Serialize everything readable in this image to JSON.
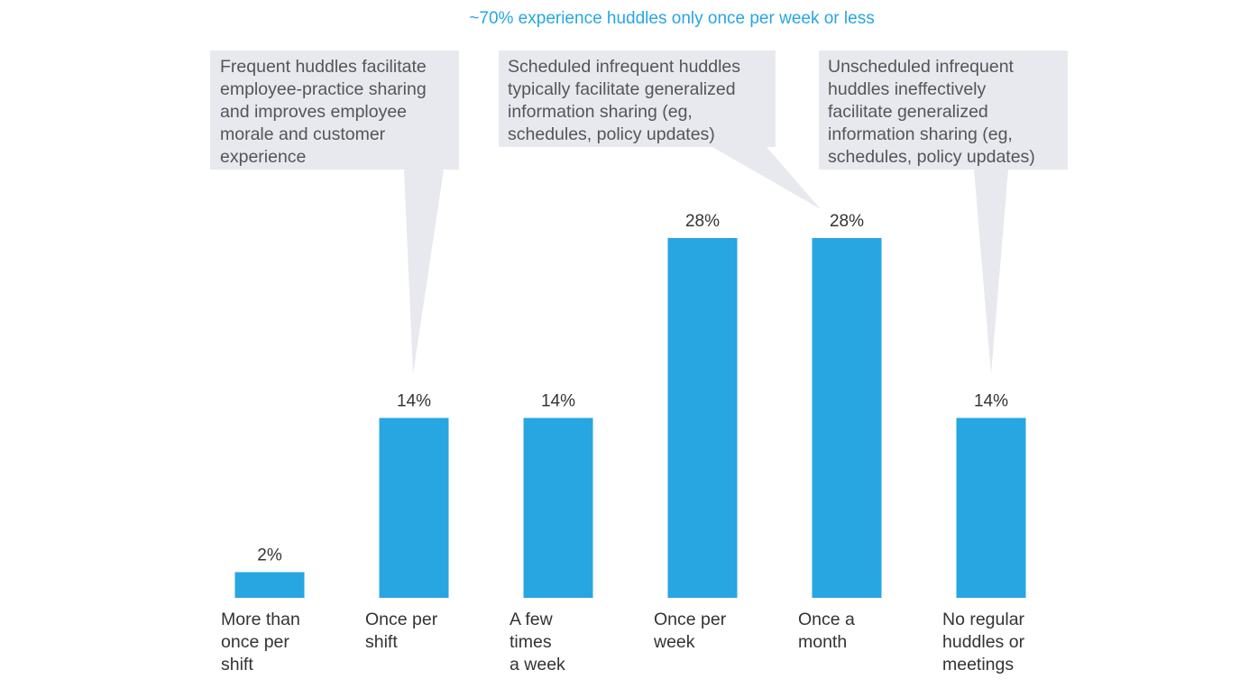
{
  "chart_data": {
    "type": "bar",
    "title": "~70% experience huddles only once per week or less",
    "categories": [
      [
        "More than",
        "once per",
        "shift"
      ],
      [
        "Once per",
        "shift"
      ],
      [
        "A few",
        "times",
        "a week"
      ],
      [
        "Once per",
        "week"
      ],
      [
        "Once a",
        "month"
      ],
      [
        "No regular",
        "huddles or",
        "meetings"
      ]
    ],
    "values": [
      2,
      14,
      14,
      28,
      28,
      14
    ],
    "value_labels": [
      "2%",
      "14%",
      "14%",
      "28%",
      "28%",
      "14%"
    ],
    "ylim": [
      0,
      28
    ],
    "xlabel": "",
    "ylabel": "",
    "grid": false,
    "annotations": [
      {
        "lines": [
          "Frequent huddles facilitate",
          "employee-practice sharing",
          "and improves employee",
          "morale and customer",
          "experience"
        ],
        "points_to_category": 1
      },
      {
        "lines": [
          "Scheduled infrequent huddles",
          "typically facilitate generalized",
          "information sharing (eg,",
          "schedules, policy updates)"
        ],
        "points_to_category": 4
      },
      {
        "lines": [
          "Unscheduled infrequent",
          "huddles ineffectively",
          "facilitate generalized",
          "information sharing (eg,",
          "schedules, policy updates)"
        ],
        "points_to_category": 5
      }
    ]
  },
  "colors": {
    "bar": "#27a6e1",
    "title": "#27a6e1",
    "callout_fill": "#e7e9ef",
    "callout_text": "#555555",
    "label_text": "#333333"
  }
}
